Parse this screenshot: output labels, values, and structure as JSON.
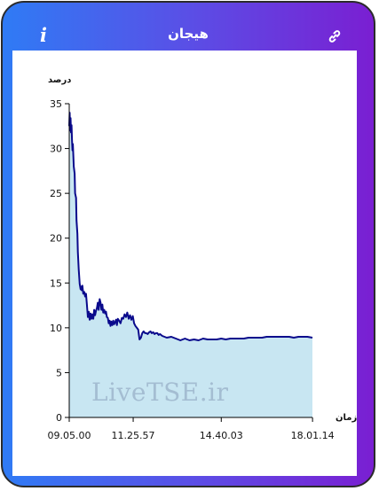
{
  "header": {
    "title": "هیجان",
    "info_icon": "info-icon",
    "link_icon": "link-icon"
  },
  "watermark": "LiveTSE.ir",
  "colors": {
    "gradient_start": "#2f7bf5",
    "gradient_end": "#7a1fd2",
    "line": "#0a0a8c",
    "area": "#c8e6f2"
  },
  "chart_data": {
    "type": "area",
    "title": "",
    "ylabel": "درصد",
    "xlabel": "زمان",
    "ylim": [
      0,
      35
    ],
    "yticks": [
      "0",
      "5",
      "10",
      "15",
      "20",
      "25",
      "30",
      "35"
    ],
    "xticks": [
      "09.05.00",
      "11.25.57",
      "14.40.03",
      "18.01.14"
    ],
    "xrange_minutes": [
      545,
      1081
    ],
    "xtick_minutes": [
      545,
      685.95,
      880.05,
      1081.23
    ],
    "grid": false,
    "series": [
      {
        "x": [
          545,
          546,
          547,
          548,
          549,
          550,
          551,
          552,
          553,
          555,
          557,
          558,
          560,
          561,
          563,
          564,
          566,
          568,
          570,
          571,
          572,
          574,
          576,
          578,
          580,
          582,
          584,
          586,
          588,
          590,
          592,
          594,
          596,
          598,
          600,
          602,
          604,
          606,
          608,
          610,
          612,
          614,
          616,
          618,
          620,
          622,
          624,
          626,
          628,
          630,
          632,
          634,
          636,
          638,
          640,
          642,
          644,
          646,
          648,
          650,
          652,
          655,
          658,
          661,
          664,
          667,
          670,
          673,
          676,
          679,
          682,
          685,
          688,
          691,
          694,
          697,
          700,
          703,
          706,
          709,
          712,
          715,
          718,
          721,
          724,
          727,
          730,
          733,
          736,
          739,
          742,
          745,
          750,
          760,
          770,
          780,
          790,
          800,
          810,
          820,
          830,
          840,
          850,
          860,
          870,
          880,
          890,
          900,
          910,
          920,
          930,
          940,
          950,
          960,
          970,
          980,
          990,
          1000,
          1010,
          1020,
          1030,
          1040,
          1050,
          1060,
          1070,
          1081
        ],
        "y": [
          32.5,
          34.0,
          32.0,
          33.4,
          31.8,
          32.6,
          31.0,
          29.8,
          30.5,
          28.0,
          27.2,
          25.0,
          24.5,
          22.0,
          20.5,
          18.5,
          16.5,
          14.9,
          14.3,
          14.6,
          14.2,
          14.7,
          13.8,
          14.0,
          13.5,
          13.8,
          12.6,
          11.2,
          11.8,
          10.9,
          11.6,
          11.0,
          11.5,
          11.0,
          12.0,
          11.4,
          11.9,
          12.2,
          12.8,
          12.0,
          13.2,
          12.8,
          12.0,
          12.6,
          11.7,
          12.0,
          11.6,
          11.8,
          11.2,
          11.1,
          10.5,
          10.8,
          10.2,
          10.7,
          10.3,
          10.8,
          10.4,
          10.6,
          10.9,
          10.3,
          11.0,
          10.8,
          10.5,
          11.1,
          11.0,
          11.5,
          11.2,
          11.7,
          11.0,
          11.4,
          10.9,
          11.3,
          10.5,
          10.2,
          10.0,
          9.8,
          8.7,
          8.9,
          9.4,
          9.6,
          9.4,
          9.4,
          9.3,
          9.5,
          9.6,
          9.4,
          9.5,
          9.3,
          9.4,
          9.4,
          9.2,
          9.3,
          9.1,
          8.9,
          9.0,
          8.8,
          8.6,
          8.8,
          8.6,
          8.7,
          8.6,
          8.8,
          8.7,
          8.7,
          8.7,
          8.8,
          8.7,
          8.8,
          8.8,
          8.8,
          8.8,
          8.9,
          8.9,
          8.9,
          8.9,
          9.0,
          9.0,
          9.0,
          9.0,
          9.0,
          9.0,
          8.9,
          9.0,
          9.0,
          9.0,
          8.9
        ]
      }
    ]
  }
}
